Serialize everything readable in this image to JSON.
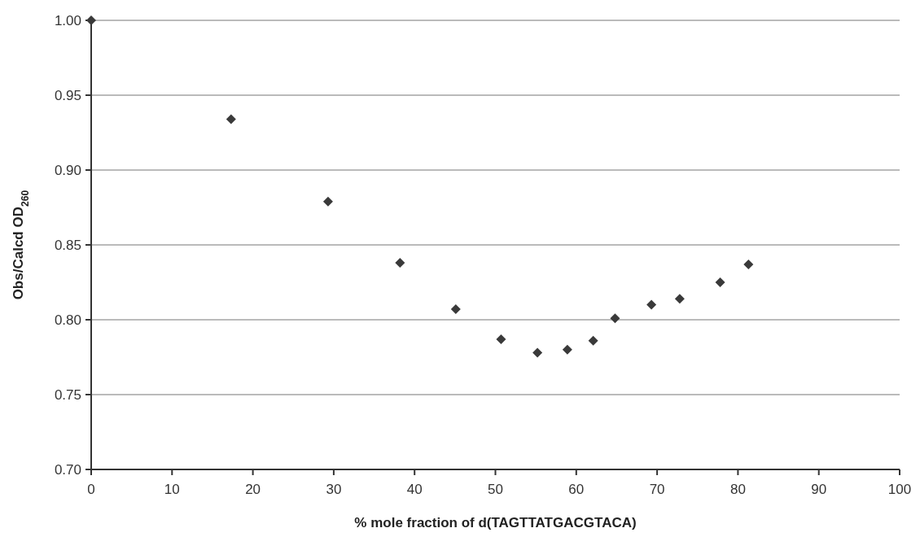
{
  "chart_data": {
    "type": "scatter",
    "xlabel": "% mole fraction of d(TAGTTATGACGTACA)",
    "ylabel": "Obs/Calcd OD$_{260}$",
    "x": [
      0,
      17.3,
      29.3,
      38.2,
      45.1,
      50.7,
      55.2,
      58.9,
      62.1,
      64.8,
      69.3,
      72.8,
      77.8,
      81.3
    ],
    "values": [
      1.0,
      0.934,
      0.879,
      0.838,
      0.807,
      0.787,
      0.778,
      0.78,
      0.786,
      0.801,
      0.81,
      0.814,
      0.825,
      0.837
    ],
    "color": "#3a3a3a",
    "marker": "diamond",
    "xlim": [
      0,
      100
    ],
    "xticks": [
      0,
      10,
      20,
      30,
      40,
      50,
      60,
      70,
      80,
      90,
      100
    ],
    "ylim": [
      0.7,
      1.0
    ],
    "yticks": [
      {
        "value": 0.7,
        "label": "0.70"
      },
      {
        "value": 0.75,
        "label": "0.75"
      },
      {
        "value": 0.8,
        "label": "0.80"
      },
      {
        "value": 0.85,
        "label": "0.85"
      },
      {
        "value": 0.9,
        "label": "0.90"
      },
      {
        "value": 0.95,
        "label": "0.95"
      },
      {
        "value": 1.0,
        "label": "1.00"
      }
    ],
    "grid": "y"
  }
}
